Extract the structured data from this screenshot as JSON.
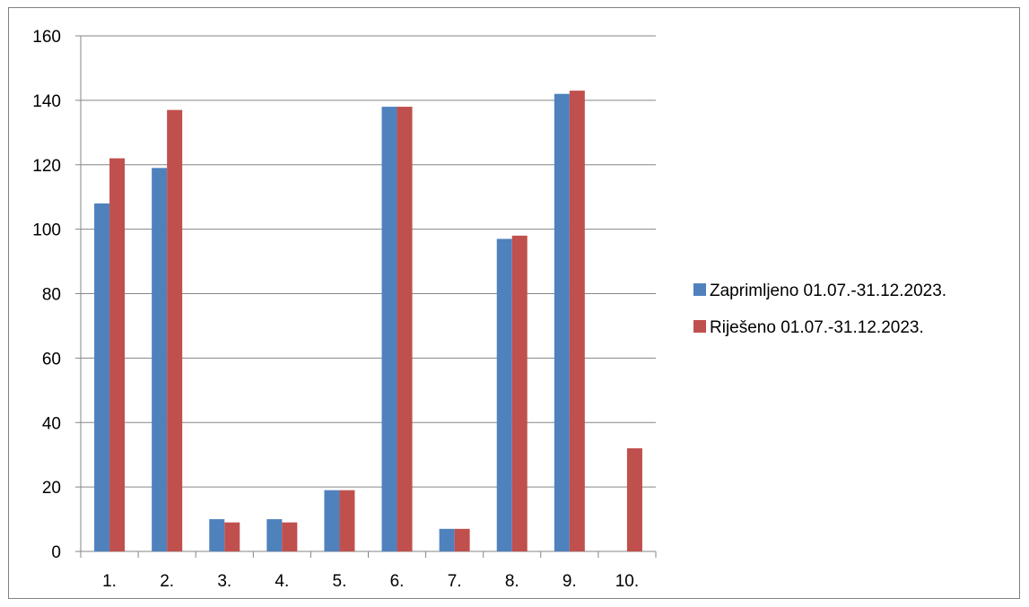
{
  "chart_data": {
    "type": "bar",
    "categories": [
      "1.",
      "2.",
      "3.",
      "4.",
      "5.",
      "6.",
      "7.",
      "8.",
      "9.",
      "10."
    ],
    "series": [
      {
        "name": "Zaprimljeno 01.07.-31.12.2023.",
        "color": "#4f81bd",
        "values": [
          108,
          119,
          10,
          10,
          19,
          138,
          7,
          97,
          142,
          null
        ]
      },
      {
        "name": "Riješeno 01.07.-31.12.2023.",
        "color": "#c0504d",
        "values": [
          122,
          137,
          9,
          9,
          19,
          138,
          7,
          98,
          143,
          32
        ]
      }
    ],
    "title": "",
    "xlabel": "",
    "ylabel": "",
    "ylim": [
      0,
      160
    ],
    "yticks": [
      0,
      20,
      40,
      60,
      80,
      100,
      120,
      140,
      160
    ],
    "grid": true,
    "legend_position": "right"
  }
}
